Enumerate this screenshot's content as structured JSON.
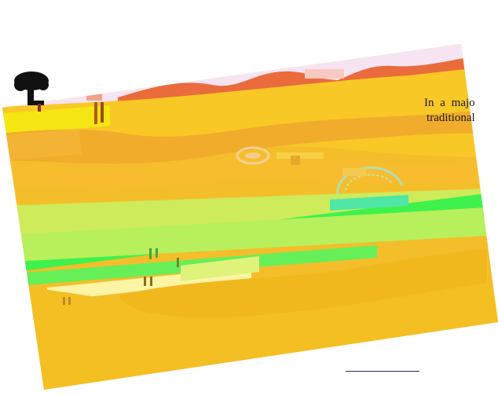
{
  "caption": {
    "line1": "In a majo",
    "line2": "traditional"
  },
  "colors": {
    "sky": "#f6e6f2",
    "wave_red": "#ec6a3c",
    "field_yellow": "#f6c526",
    "field_orange": "#f0b02a",
    "band_green": "#3ef04c",
    "band_lime": "#c8ee5a",
    "pale_yellow": "#fbf7a8",
    "figure_black": "#111111",
    "rule": "#2a2a6a"
  },
  "icons": {
    "tree": "tree-silhouette-icon",
    "flower": "flower-icon",
    "sun": "sun-icon"
  }
}
